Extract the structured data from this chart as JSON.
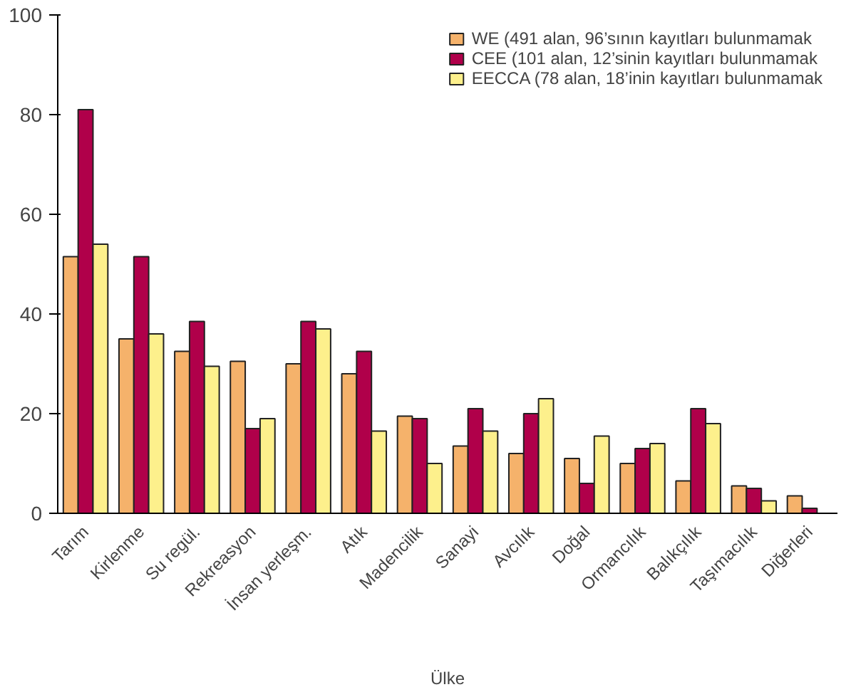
{
  "chart_data": {
    "type": "bar",
    "xlabel": "Ülke",
    "categories": [
      "Tarım",
      "Kirlenme",
      "Su regül.",
      "Rekreasyon",
      "İnsan yerleşm.",
      "Atık",
      "Madencilik",
      "Sanayi",
      "Avcılık",
      "Doğal",
      "Ormancılık",
      "Balıkçılık",
      "Taşımacılık",
      "Diğerleri"
    ],
    "series": [
      {
        "name": "WE (491 alan, 96’sının kayıtları bulunmamak",
        "color": "#f5b26b",
        "values": [
          51.5,
          35,
          32.5,
          30.5,
          30,
          28,
          19.5,
          13.5,
          12,
          11,
          10,
          6.5,
          5.5,
          3.5
        ]
      },
      {
        "name": "CEE (101 alan, 12’sinin kayıtları bulunmamak",
        "color": "#b0004a",
        "values": [
          81,
          51.5,
          38.5,
          17,
          38.5,
          32.5,
          19,
          21,
          20,
          6,
          13,
          21,
          5,
          1
        ]
      },
      {
        "name": "EECCA (78 alan, 18’inin kayıtları bulunmamak",
        "color": "#fdf08c",
        "values": [
          54,
          36,
          29.5,
          19,
          37,
          16.5,
          10,
          16.5,
          23,
          15.5,
          14,
          18,
          2.5,
          null
        ]
      }
    ],
    "ylim": [
      0,
      100
    ],
    "yticks": [
      0,
      20,
      40,
      60,
      80,
      100
    ],
    "grid": false,
    "legend": "top right"
  }
}
